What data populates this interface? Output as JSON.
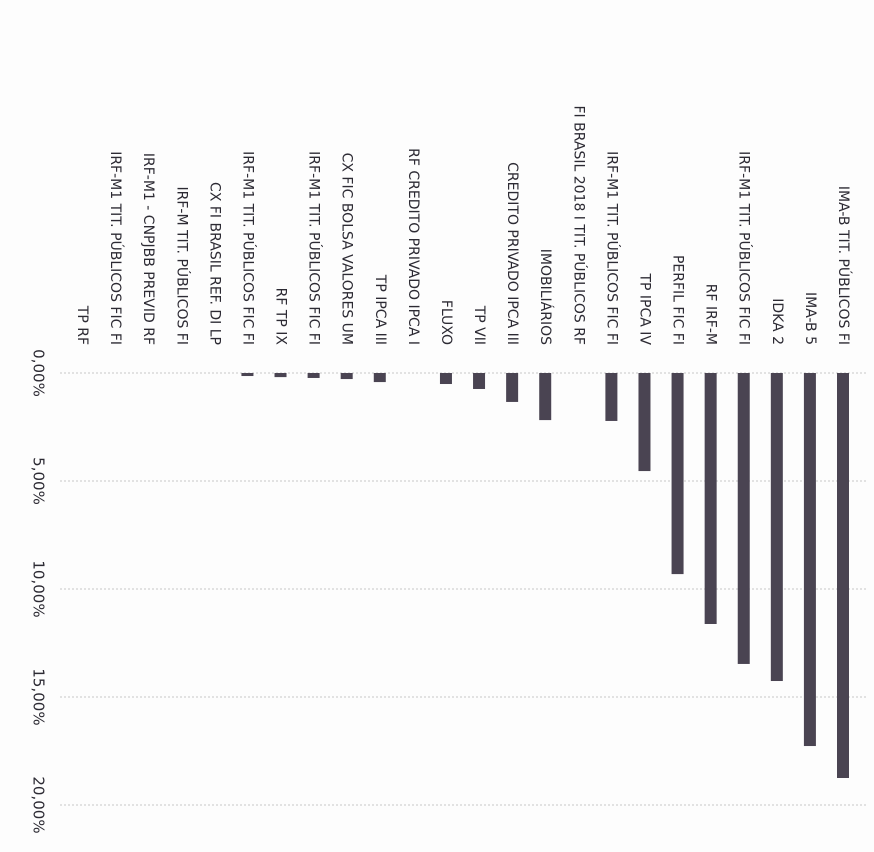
{
  "chart_data": {
    "type": "bar",
    "categories": [
      "IMA-B TIT. PÚBLICOS FI",
      "IMA-B 5",
      "IDKA 2",
      "IRF-M1 TIT. PÚBLICOS FIC FI",
      "RF IRF-M",
      "PERFIL FIC FI",
      "TP IPCA IV",
      "IRF-M1 TIT. PÚBLICOS FIC FI",
      "FI BRASIL 2018 I TIT. PÚBLICOS RF",
      "IMOBILIÁRIOS",
      "CREDITO PRIVADO IPCA III",
      "TP VII",
      "FLUXO",
      "RF CREDITO PRIVADO IPCA I",
      "TP IPCA III",
      "CX FIC BOLSA VALORES UM",
      "IRF-M1 TIT. PÚBLICOS FIC FI",
      "RF TP IX",
      "IRF-M1 TIT. PÚBLICOS FIC FI",
      "CX FI BRASIL REF. DI LP",
      "IRF-M TIT. PÚBLICOS FI",
      "IRF-M1 - CNPJBB PREVID RF",
      "IRF-M1 TIT. PÚBLICOS FIC FI",
      "TP RF"
    ],
    "values": [
      18.75,
      17.27,
      14.26,
      13.47,
      11.62,
      9.31,
      4.54,
      2.22,
      0,
      2.18,
      1.34,
      0.74,
      0.51,
      0,
      0.42,
      0.28,
      0.23,
      0.19,
      0.14,
      0,
      0,
      0,
      0,
      0
    ],
    "color": "#4a4452",
    "ylim": [
      0,
      20
    ],
    "yticks": [
      {
        "value": 0,
        "label": "0,00%"
      },
      {
        "value": 5,
        "label": "5,00%"
      },
      {
        "value": 10,
        "label": "10,00%"
      },
      {
        "value": 15,
        "label": "15,00%"
      },
      {
        "value": 20,
        "label": "20,00%"
      }
    ],
    "grid": true
  }
}
